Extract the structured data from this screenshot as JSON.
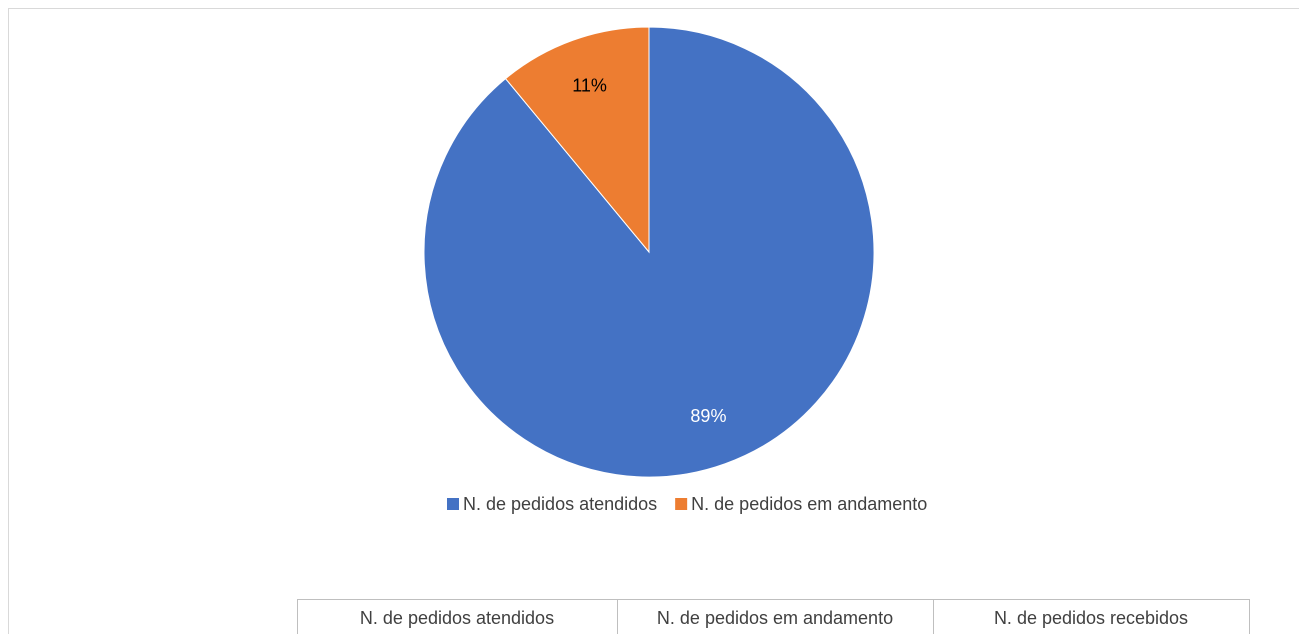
{
  "chart_data": {
    "type": "pie",
    "categories": [
      "N. de pedidos atendidos",
      "N. de pedidos em andamento"
    ],
    "values": [
      89,
      11
    ],
    "value_labels": [
      "89%",
      "11%"
    ],
    "colors": [
      "#4472c4",
      "#ed7d31"
    ],
    "legend": "bottom"
  },
  "table": {
    "header": [
      "N. de pedidos atendidos",
      "N. de pedidos em andamento",
      "N. de pedidos recebidos"
    ]
  }
}
